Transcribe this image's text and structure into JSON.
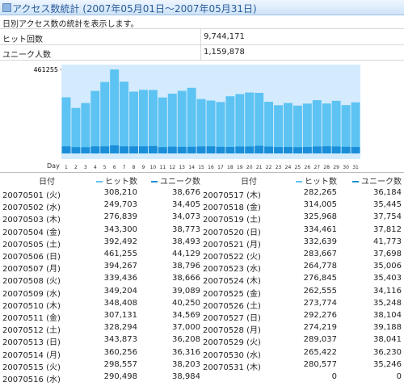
{
  "header": {
    "title": "アクセス数統計 (2007年05月01日～2007年05月31日)"
  },
  "description": "日別アクセス数の統計を表示します。",
  "summary": {
    "rows": [
      [
        "ヒット回数",
        "9,744,171"
      ],
      [
        "ユニーク人数",
        "1,159,878"
      ]
    ]
  },
  "chart_data": {
    "type": "bar",
    "x_label": "Day",
    "categories": [
      "1",
      "2",
      "3",
      "4",
      "5",
      "6",
      "7",
      "8",
      "9",
      "10",
      "11",
      "12",
      "13",
      "14",
      "15",
      "16",
      "17",
      "18",
      "19",
      "20",
      "21",
      "22",
      "23",
      "24",
      "25",
      "26",
      "27",
      "28",
      "29",
      "30",
      "31"
    ],
    "series": [
      {
        "name": "ヒット数",
        "color": "#5cc3f3",
        "values": [
          308210,
          249703,
          276839,
          343300,
          392492,
          461255,
          394267,
          339436,
          349204,
          348408,
          307131,
          328294,
          343873,
          360256,
          298557,
          290498,
          282265,
          314005,
          325968,
          334461,
          332639,
          283667,
          264778,
          276845,
          262555,
          273774,
          292276,
          274219,
          289037,
          265422,
          280577
        ]
      },
      {
        "name": "ユニーク数",
        "color": "#1a8ed8",
        "values": [
          38676,
          34405,
          34073,
          38773,
          38493,
          44129,
          38796,
          38666,
          39089,
          40250,
          34569,
          37000,
          36208,
          36316,
          38203,
          38984,
          36184,
          35445,
          37754,
          37812,
          41773,
          37698,
          35006,
          35403,
          34116,
          35248,
          38104,
          39188,
          38041,
          36230,
          35246
        ]
      }
    ],
    "ylim": [
      0,
      461255
    ],
    "yticks": [
      461255
    ]
  },
  "table": {
    "columns": [
      "日付",
      "ヒット数",
      "ユニーク数",
      "日付",
      "ヒット数",
      "ユニーク数"
    ],
    "rows": [
      [
        "20070501 (火)",
        "308,210",
        "38,676",
        "20070517 (木)",
        "282,265",
        "36,184"
      ],
      [
        "20070502 (水)",
        "249,703",
        "34,405",
        "20070518 (金)",
        "314,005",
        "35,445"
      ],
      [
        "20070503 (木)",
        "276,839",
        "34,073",
        "20070519 (土)",
        "325,968",
        "37,754"
      ],
      [
        "20070504 (金)",
        "343,300",
        "38,773",
        "20070520 (日)",
        "334,461",
        "37,812"
      ],
      [
        "20070505 (土)",
        "392,492",
        "38,493",
        "20070521 (月)",
        "332,639",
        "41,773"
      ],
      [
        "20070506 (日)",
        "461,255",
        "44,129",
        "20070522 (火)",
        "283,667",
        "37,698"
      ],
      [
        "20070507 (月)",
        "394,267",
        "38,796",
        "20070523 (水)",
        "264,778",
        "35,006"
      ],
      [
        "20070508 (火)",
        "339,436",
        "38,666",
        "20070524 (木)",
        "276,845",
        "35,403"
      ],
      [
        "20070509 (水)",
        "349,204",
        "39,089",
        "20070525 (金)",
        "262,555",
        "34,116"
      ],
      [
        "20070510 (木)",
        "348,408",
        "40,250",
        "20070526 (土)",
        "273,774",
        "35,248"
      ],
      [
        "20070511 (金)",
        "307,131",
        "34,569",
        "20070527 (日)",
        "292,276",
        "38,104"
      ],
      [
        "20070512 (土)",
        "328,294",
        "37,000",
        "20070528 (月)",
        "274,219",
        "39,188"
      ],
      [
        "20070513 (日)",
        "343,873",
        "36,208",
        "20070529 (火)",
        "289,037",
        "38,041"
      ],
      [
        "20070514 (月)",
        "360,256",
        "36,316",
        "20070530 (水)",
        "265,422",
        "36,230"
      ],
      [
        "20070515 (火)",
        "298,557",
        "38,203",
        "20070531 (木)",
        "280,577",
        "35,246"
      ],
      [
        "20070516 (水)",
        "290,498",
        "38,984",
        null,
        "0",
        "0"
      ]
    ]
  }
}
